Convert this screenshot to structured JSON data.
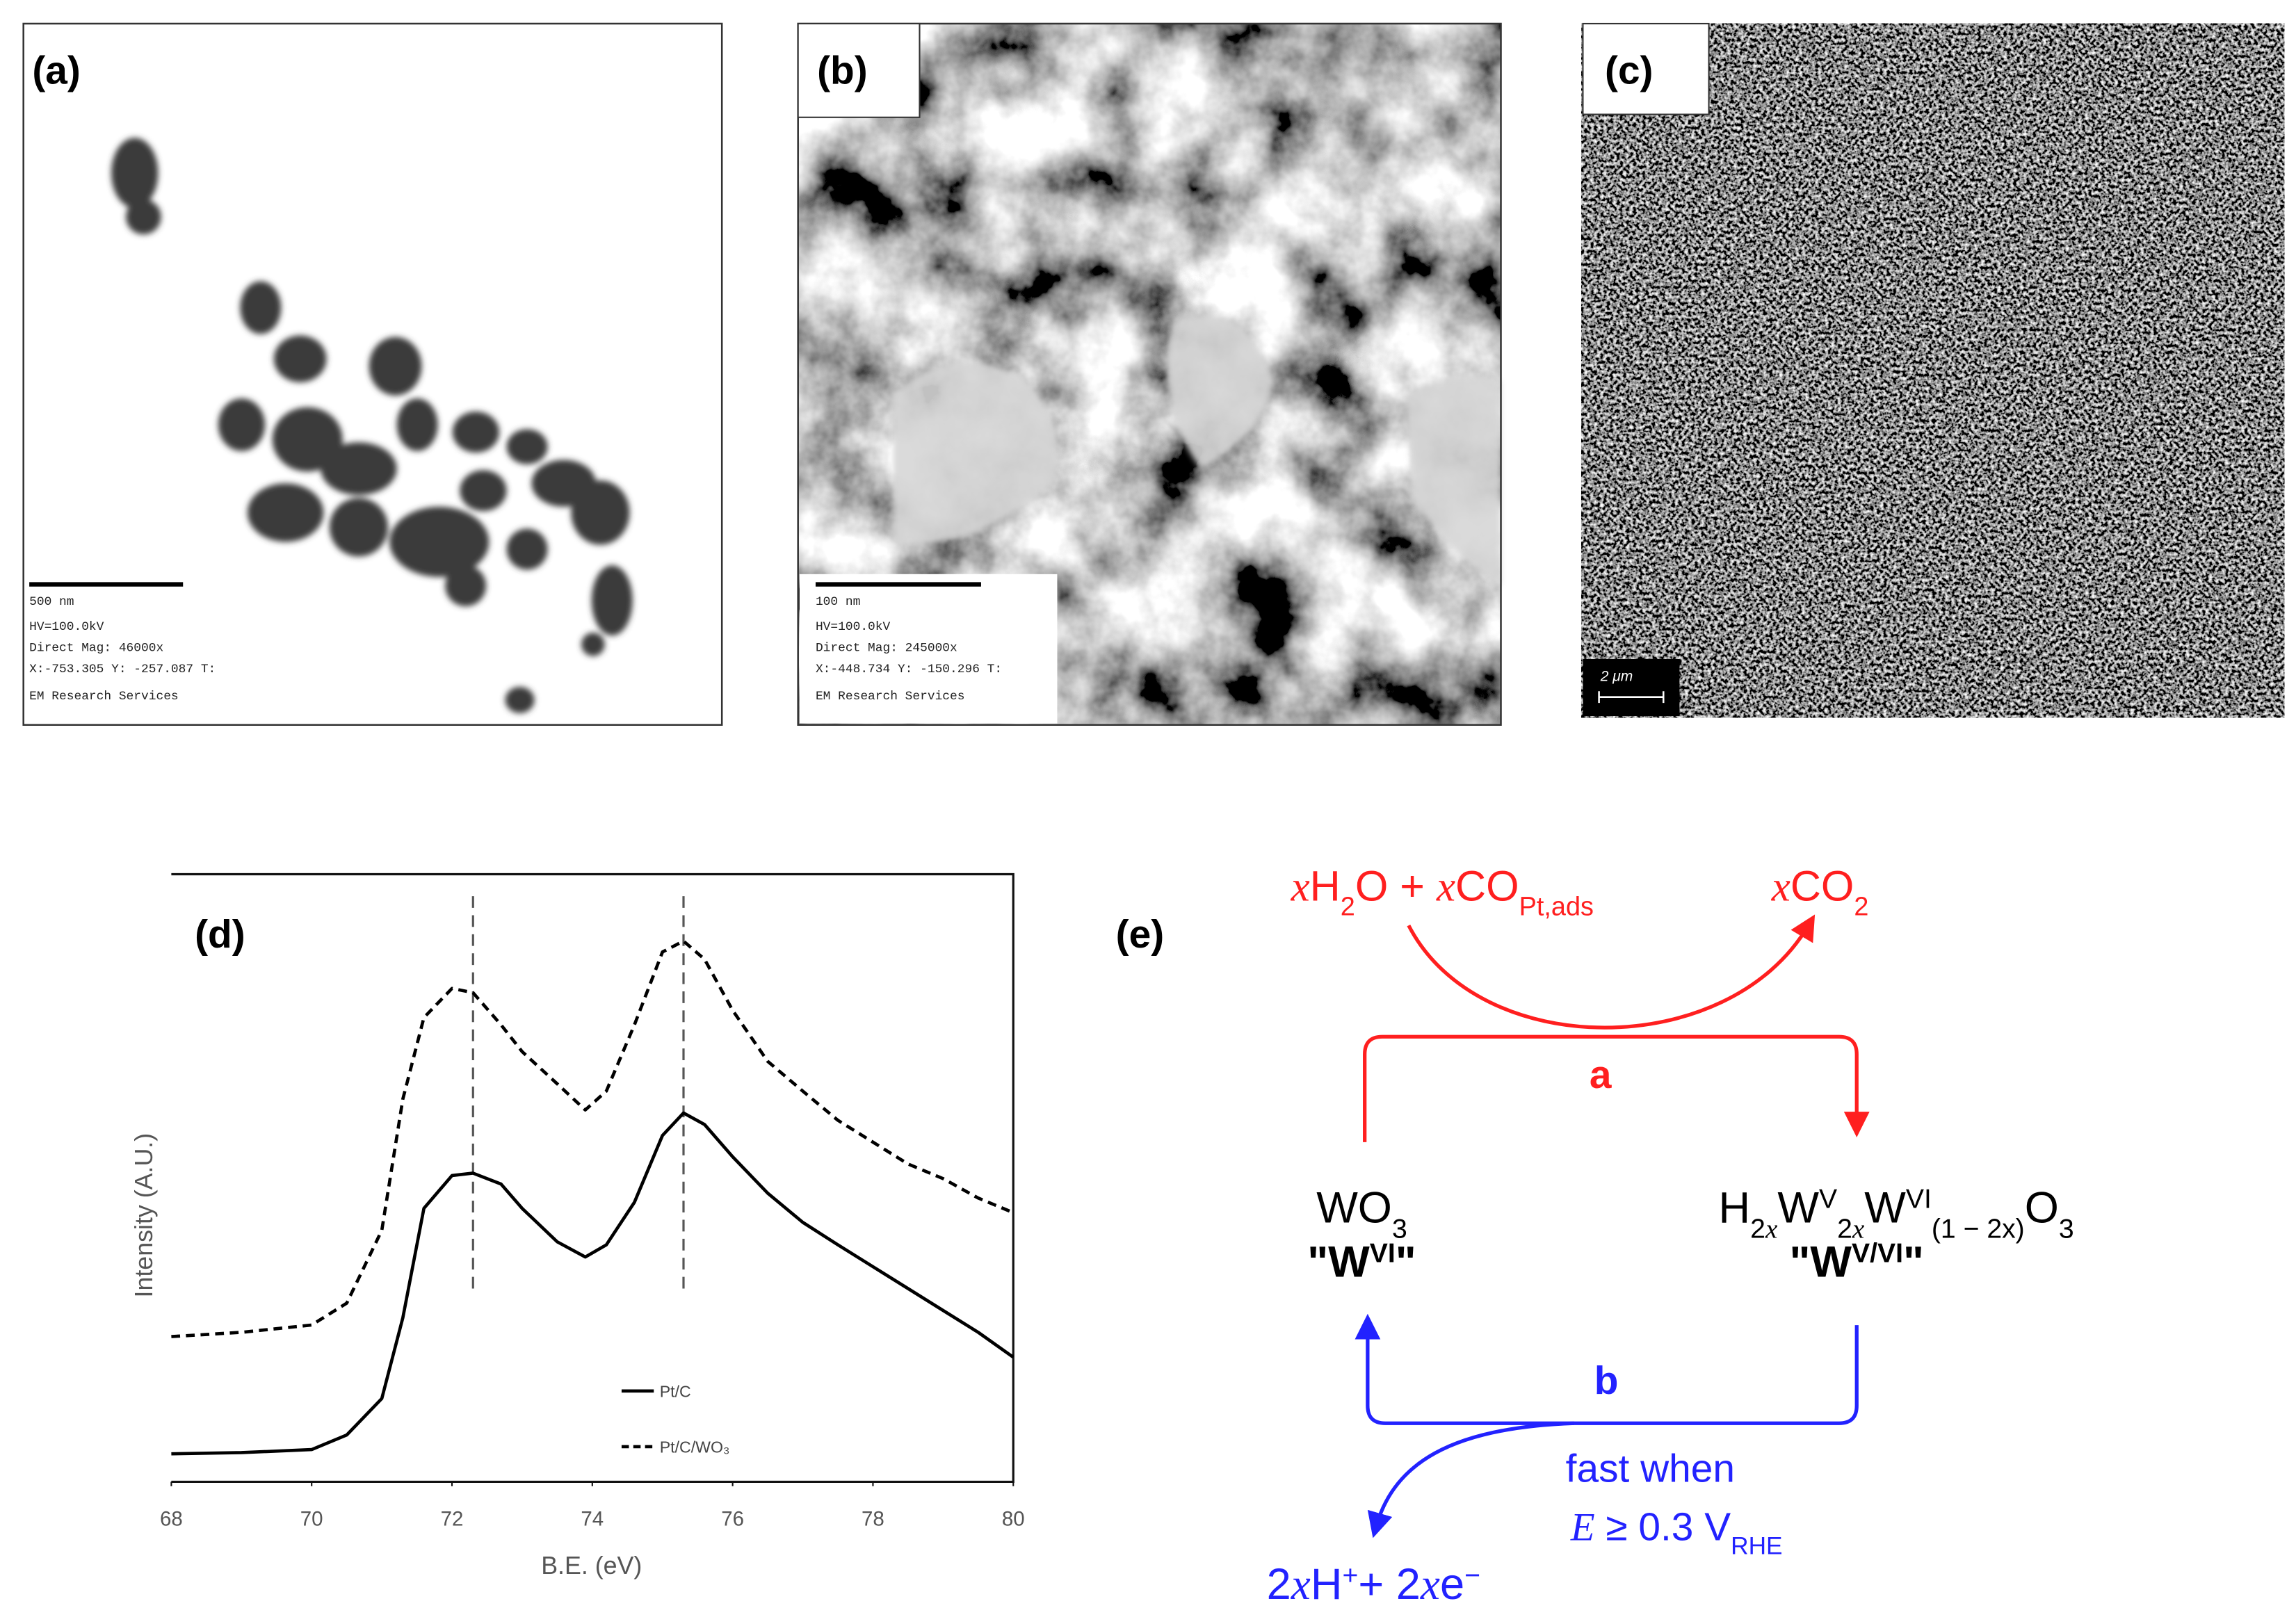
{
  "images": [
    {
      "label": "(a)",
      "scale_bar": "500 nm",
      "info": [
        "HV=100.0kV",
        "Direct Mag: 46000x",
        "X:-753.305 Y: -257.087 T:",
        "EM Research Services"
      ]
    },
    {
      "label": "(b)",
      "scale_bar": "100 nm",
      "info": [
        "HV=100.0kV",
        "Direct Mag: 245000x",
        "X:-448.734 Y: -150.296 T:",
        "EM Research Services"
      ]
    },
    {
      "label": "(c)",
      "scale_bar": "2 μm"
    }
  ],
  "chart_data": {
    "type": "line",
    "panel_label": "(d)",
    "x_label": "B.E. (eV)",
    "y_label": "Intensity (A.U.)",
    "x": [
      68,
      69,
      70,
      70.5,
      71,
      71.3,
      71.6,
      72,
      72.3,
      72.7,
      73,
      73.5,
      73.9,
      74.2,
      74.6,
      75,
      75.3,
      75.6,
      76,
      76.5,
      77,
      77.5,
      78,
      78.5,
      79,
      79.5,
      80
    ],
    "series": [
      {
        "name": "Pt/C",
        "color": "#000000",
        "dashed": false,
        "values": [
          4.6,
          4.8,
          5.3,
          7.7,
          13.7,
          27,
          45,
          50.4,
          50.8,
          49,
          45,
          39.5,
          37,
          39,
          46,
          57,
          60.7,
          58.8,
          53.5,
          47.5,
          42.7,
          39,
          35.4,
          31.8,
          28.2,
          24.6,
          20.5
        ]
      },
      {
        "name": "Pt/C/WO₃",
        "color": "#000000",
        "dashed": true,
        "values": [
          23.9,
          24.6,
          25.8,
          29.4,
          41.4,
          63,
          76.4,
          81.2,
          80.5,
          75.2,
          70.8,
          65.5,
          61.2,
          64.3,
          75.2,
          87.2,
          89,
          86,
          77.6,
          69.2,
          64.3,
          59.5,
          55.9,
          52.3,
          49.9,
          46.7,
          44.3
        ]
      }
    ],
    "xlim": [
      68,
      80
    ],
    "xticks": [
      68,
      70,
      72,
      74,
      76,
      78,
      80
    ],
    "ylim": [
      0,
      100
    ],
    "vlines": [
      72.3,
      75.3
    ],
    "legend": "lower center"
  },
  "diagram": {
    "panel_label": "(e)",
    "reactant_top": [
      [
        "x",
        "i"
      ],
      [
        "H",
        ""
      ],
      [
        "2",
        "sub"
      ],
      [
        "O + ",
        ""
      ],
      [
        "x",
        "i"
      ],
      [
        "CO",
        ""
      ],
      [
        "Pt,ads",
        "sub"
      ]
    ],
    "product_top": [
      [
        "x",
        "i"
      ],
      [
        "CO",
        ""
      ],
      [
        "2",
        "sub"
      ]
    ],
    "label_a": "a",
    "left_species": [
      [
        "WO",
        ""
      ],
      [
        "3",
        "sub"
      ]
    ],
    "left_state": [
      [
        "\"W",
        ""
      ],
      [
        "VI",
        "sup"
      ],
      [
        "\"",
        ""
      ]
    ],
    "right_species": [
      [
        "H",
        ""
      ],
      [
        "2",
        "sub"
      ],
      [
        "x",
        "subi"
      ],
      [
        "W",
        ""
      ],
      [
        "V",
        "sup"
      ],
      [
        "2",
        "sub"
      ],
      [
        "x",
        "subi"
      ],
      [
        "W",
        ""
      ],
      [
        "VI",
        "sup"
      ],
      [
        "(1 − 2x)",
        "sub"
      ],
      [
        "O",
        ""
      ],
      [
        "3",
        "sub"
      ]
    ],
    "right_state": [
      [
        "\"W",
        ""
      ],
      [
        "V/VI",
        "sup"
      ],
      [
        "\"",
        ""
      ]
    ],
    "label_b": "b",
    "note_line1": "fast when",
    "note_line2": [
      [
        "E",
        "i"
      ],
      [
        " ≥ 0.3 V",
        ""
      ],
      [
        "RHE",
        "sub"
      ]
    ],
    "product_bottom": [
      [
        "2",
        ""
      ],
      [
        "x",
        "i"
      ],
      [
        "H",
        ""
      ],
      [
        "+",
        "sup"
      ],
      [
        "+ 2",
        ""
      ],
      [
        "x",
        "i"
      ],
      [
        "e",
        ""
      ],
      [
        "−",
        "sup"
      ]
    ]
  }
}
